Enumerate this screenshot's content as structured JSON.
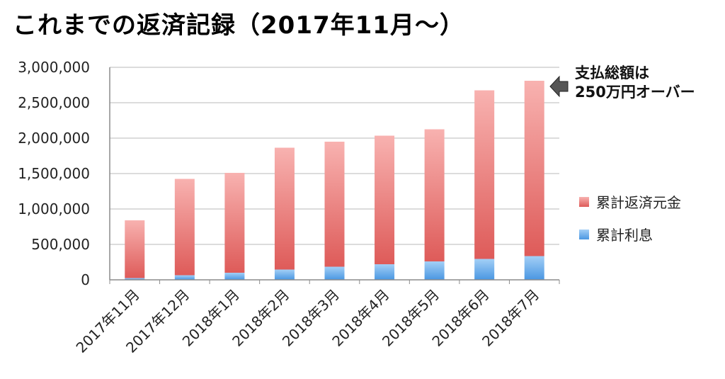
{
  "title": "これまでの返済記録（2017年11月〜）",
  "annotation": {
    "line1": "支払総額は",
    "line2": "250万円オーバー"
  },
  "colors": {
    "principal_top": "#f8b2b0",
    "principal_bottom": "#de5b59",
    "interest_top": "#a3cff6",
    "interest_bottom": "#4a97e2",
    "grid": "#b9b9b9",
    "axis": "#8c8c8c",
    "arrow": "#555555"
  },
  "chart_data": {
    "type": "bar",
    "stacked": true,
    "categories": [
      "2017年11月",
      "2017年12月",
      "2018年1月",
      "2018年2月",
      "2018年3月",
      "2018年4月",
      "2018年5月",
      "2018年6月",
      "2018年7月"
    ],
    "series": [
      {
        "name": "累計利息",
        "values": [
          25000,
          65000,
          100000,
          145000,
          185000,
          220000,
          260000,
          295000,
          335000
        ]
      },
      {
        "name": "累計返済元金",
        "values": [
          815000,
          1360000,
          1410000,
          1720000,
          1765000,
          1815000,
          1865000,
          2380000,
          2475000
        ]
      }
    ],
    "ylim": [
      0,
      3000000
    ],
    "yticks": [
      0,
      500000,
      1000000,
      1500000,
      2000000,
      2500000,
      3000000
    ],
    "ytick_labels": [
      "0",
      "500,000",
      "1,000,000",
      "1,500,000",
      "2,000,000",
      "2,500,000",
      "3,000,000"
    ],
    "legend_position": "right",
    "grid": true
  }
}
